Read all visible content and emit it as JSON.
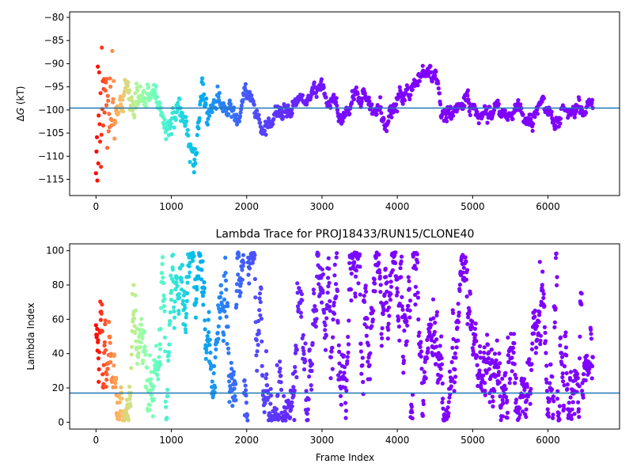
{
  "chart_data": [
    {
      "type": "scatter",
      "title": "",
      "xlabel": "",
      "ylabel_prefix": "Δ",
      "ylabel_var": "G",
      "ylabel_suffix": " (kT)",
      "xlim": [
        -350,
        6950
      ],
      "ylim": [
        -118.5,
        -78.8
      ],
      "xticks": [
        0,
        1000,
        2000,
        3000,
        4000,
        5000,
        6000
      ],
      "xtick_labels": [
        "0",
        "1000",
        "2000",
        "3000",
        "4000",
        "5000",
        "6000"
      ],
      "yticks": [
        -80,
        -85,
        -90,
        -95,
        -100,
        -105,
        -110,
        -115
      ],
      "ytick_labels": [
        "−80",
        "−85",
        "−90",
        "−95",
        "−100",
        "−105",
        "−110",
        "−115"
      ],
      "reference_line": -99.6,
      "reference_line_color": "#1f77b4",
      "colormap": "rainbow",
      "frames": 6600,
      "grid": false,
      "trend_points": [
        [
          0,
          -99
        ],
        [
          100,
          -96
        ],
        [
          200,
          -97
        ],
        [
          300,
          -99
        ],
        [
          400,
          -93
        ],
        [
          500,
          -96
        ],
        [
          600,
          -98
        ],
        [
          700,
          -99
        ],
        [
          800,
          -100
        ],
        [
          900,
          -103
        ],
        [
          1000,
          -101
        ],
        [
          1100,
          -99
        ],
        [
          1200,
          -102
        ],
        [
          1300,
          -112
        ],
        [
          1400,
          -99
        ],
        [
          1500,
          -98
        ],
        [
          1600,
          -96
        ],
        [
          1700,
          -100
        ],
        [
          1800,
          -102
        ],
        [
          1900,
          -99
        ],
        [
          2000,
          -98
        ],
        [
          2100,
          -97
        ],
        [
          2200,
          -102
        ],
        [
          2300,
          -102
        ],
        [
          2400,
          -98
        ],
        [
          2500,
          -100
        ],
        [
          2600,
          -101
        ],
        [
          2700,
          -100
        ],
        [
          2800,
          -98
        ],
        [
          2900,
          -97
        ],
        [
          3000,
          -95
        ],
        [
          3100,
          -98
        ],
        [
          3200,
          -100
        ],
        [
          3300,
          -100
        ],
        [
          3400,
          -97
        ],
        [
          3500,
          -99
        ],
        [
          3600,
          -97
        ],
        [
          3700,
          -99
        ],
        [
          3800,
          -102
        ],
        [
          3900,
          -100
        ],
        [
          4000,
          -97
        ],
        [
          4100,
          -97
        ],
        [
          4200,
          -96
        ],
        [
          4300,
          -92
        ],
        [
          4400,
          -92
        ],
        [
          4500,
          -94
        ],
        [
          4600,
          -102
        ],
        [
          4700,
          -101
        ],
        [
          4800,
          -100
        ],
        [
          4900,
          -97
        ],
        [
          5000,
          -99
        ],
        [
          5100,
          -99
        ],
        [
          5200,
          -101
        ],
        [
          5300,
          -97
        ],
        [
          5400,
          -101
        ],
        [
          5500,
          -101
        ],
        [
          5600,
          -99
        ],
        [
          5700,
          -101
        ],
        [
          5800,
          -101
        ],
        [
          5900,
          -99
        ],
        [
          6000,
          -100
        ],
        [
          6100,
          -101
        ],
        [
          6200,
          -99
        ],
        [
          6300,
          -100
        ],
        [
          6400,
          -99
        ],
        [
          6500,
          -99
        ],
        [
          6600,
          -98.5
        ]
      ]
    },
    {
      "type": "scatter",
      "title": "Lambda Trace for PROJ18433/RUN15/CLONE40",
      "xlabel": "Frame Index",
      "ylabel": "Lambda Index",
      "xlim": [
        -350,
        6950
      ],
      "ylim": [
        -4,
        104
      ],
      "xticks": [
        0,
        1000,
        2000,
        3000,
        4000,
        5000,
        6000
      ],
      "xtick_labels": [
        "0",
        "1000",
        "2000",
        "3000",
        "4000",
        "5000",
        "6000"
      ],
      "yticks": [
        0,
        20,
        40,
        60,
        80,
        100
      ],
      "ytick_labels": [
        "0",
        "20",
        "40",
        "60",
        "80",
        "100"
      ],
      "reference_line": 17,
      "reference_line_color": "#1f77b4",
      "colormap": "rainbow",
      "frames": 6600,
      "grid": false
    }
  ]
}
